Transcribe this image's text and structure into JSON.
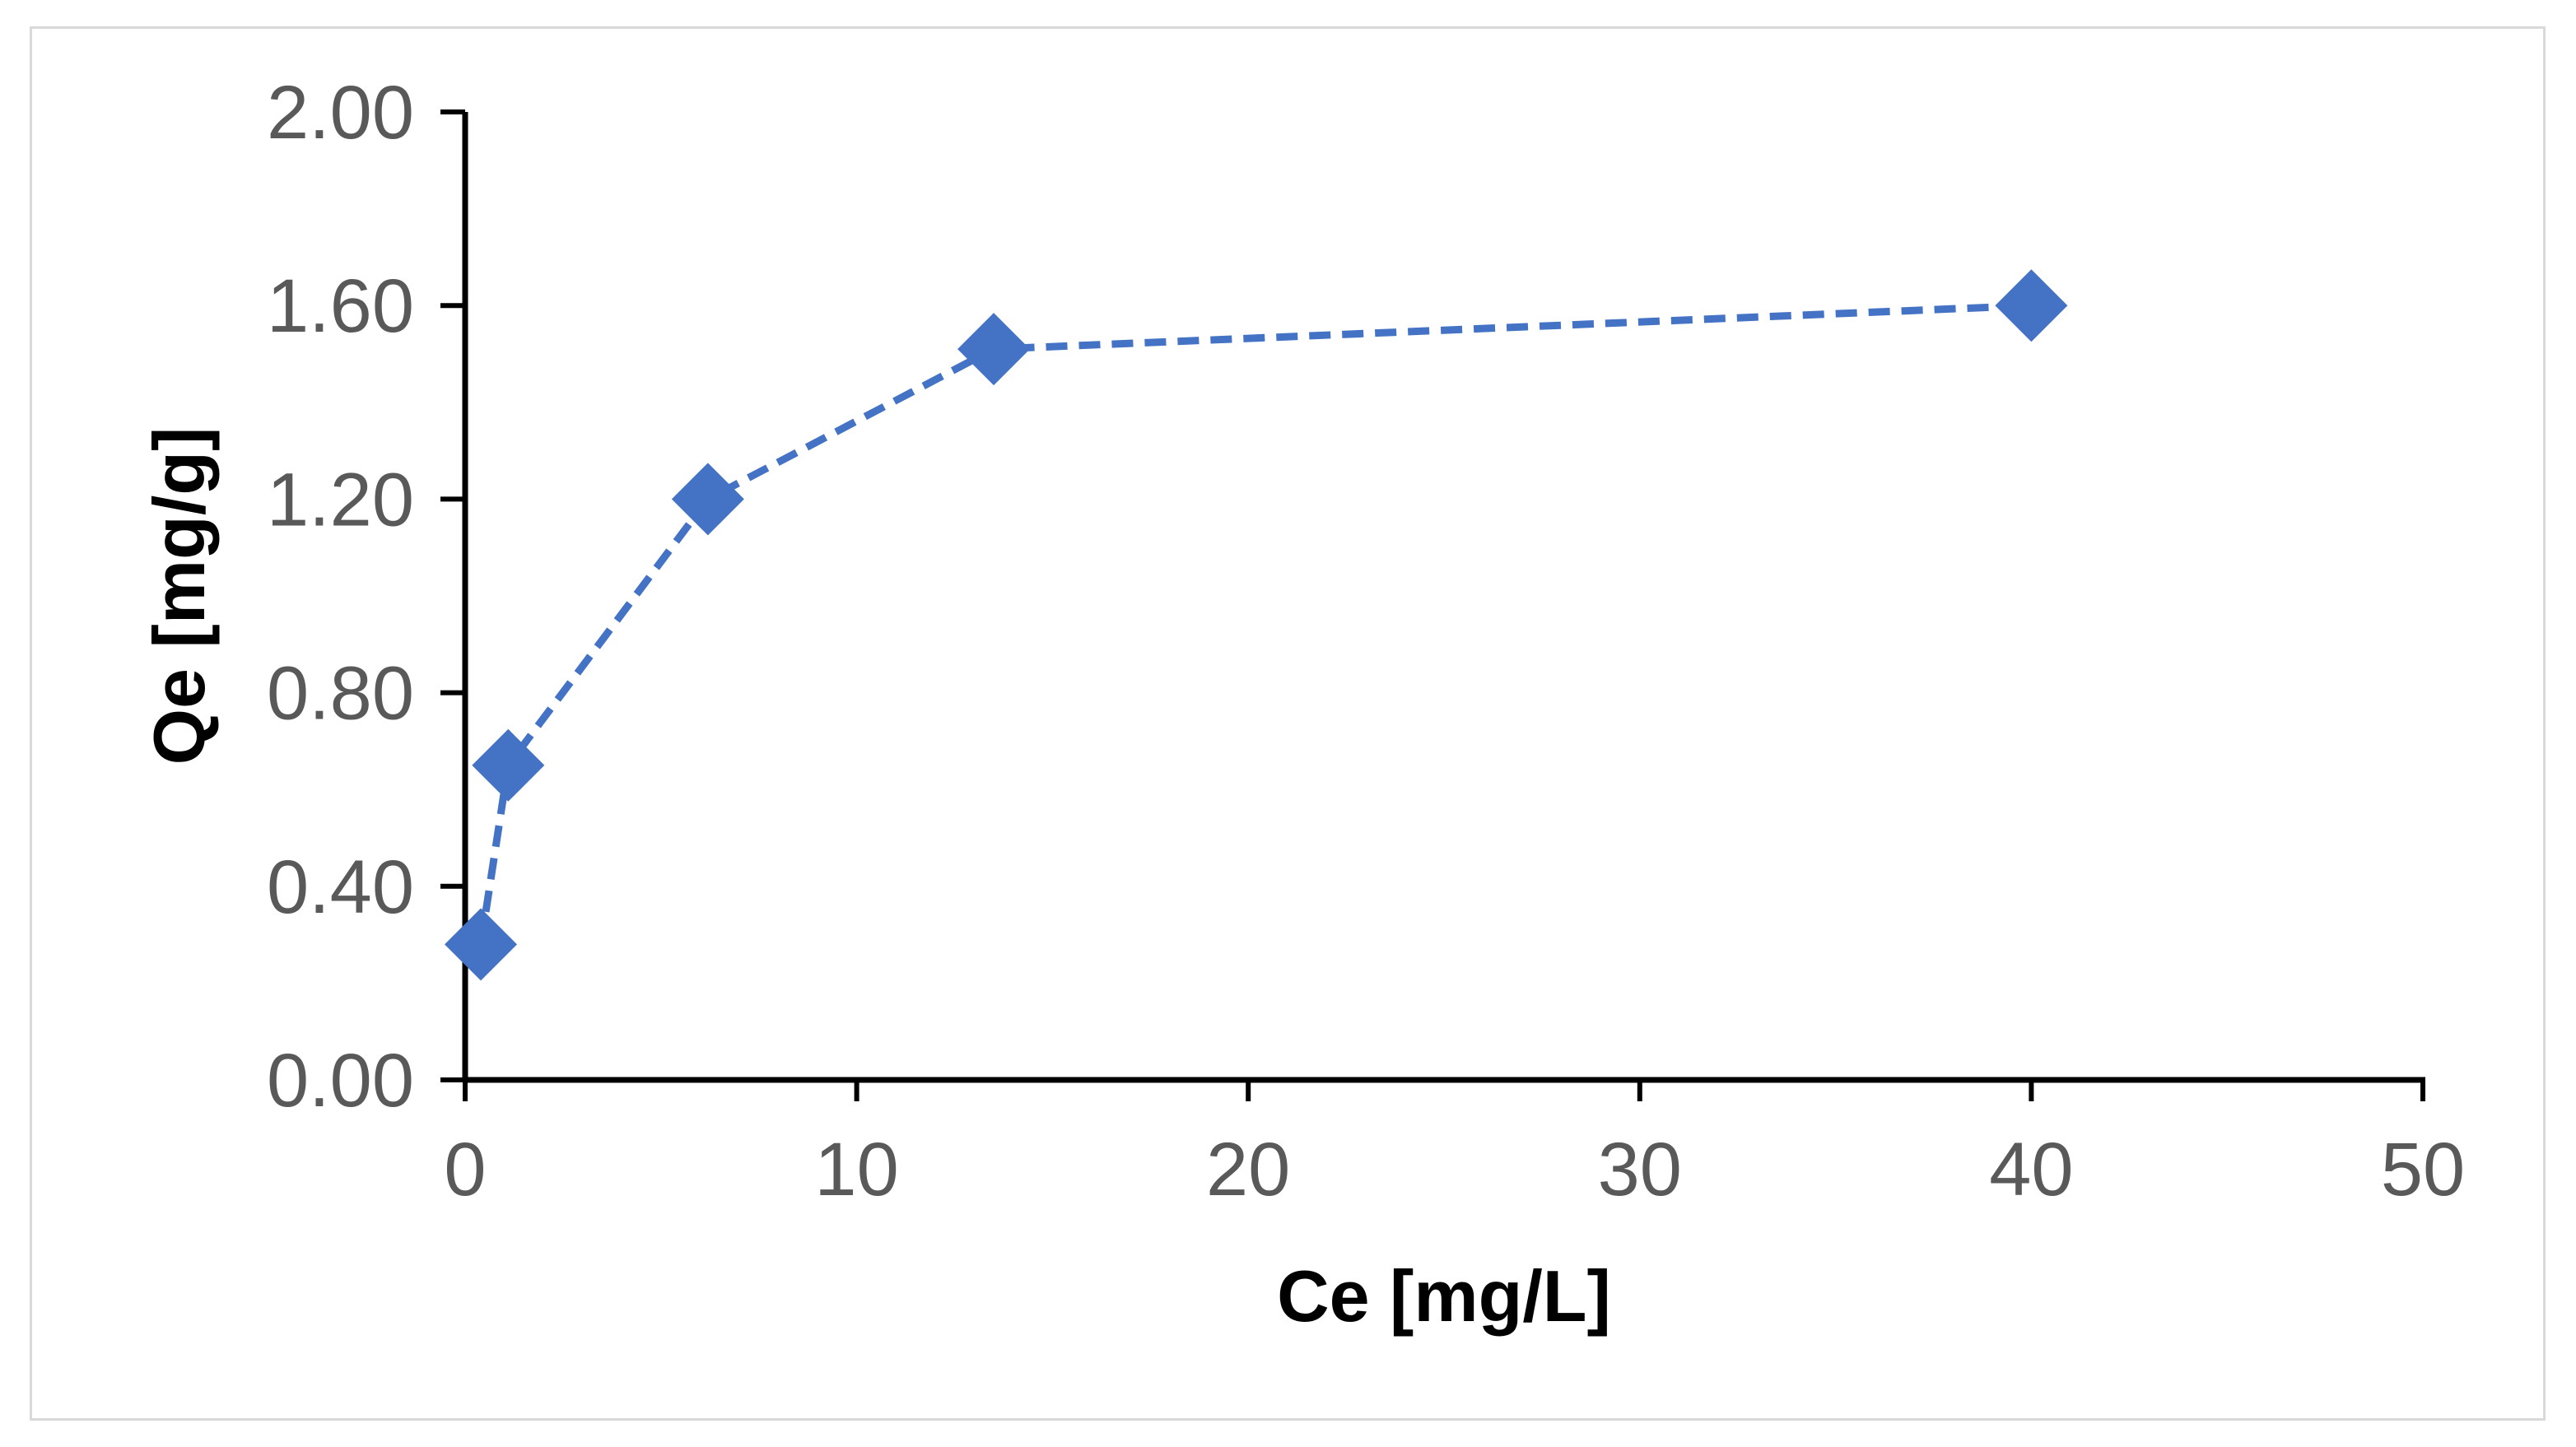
{
  "chart_data": {
    "type": "scatter",
    "title": "",
    "xlabel": "Ce [mg/L]",
    "ylabel": "Qe [mg/g]",
    "xlim": [
      0,
      50
    ],
    "ylim": [
      0,
      2
    ],
    "x_ticks": [
      "0",
      "10",
      "20",
      "30",
      "40",
      "50"
    ],
    "y_ticks": [
      "0.00",
      "0.40",
      "0.80",
      "1.20",
      "1.60",
      "2.00"
    ],
    "grid": false,
    "legend": "none",
    "series": [
      {
        "x": [
          0.4,
          1.1,
          6.2,
          13.5,
          40.0
        ],
        "y": [
          0.28,
          0.65,
          1.2,
          1.51,
          1.6
        ],
        "marker": "diamond",
        "line": "dashed",
        "color": "#4472C4"
      }
    ]
  }
}
